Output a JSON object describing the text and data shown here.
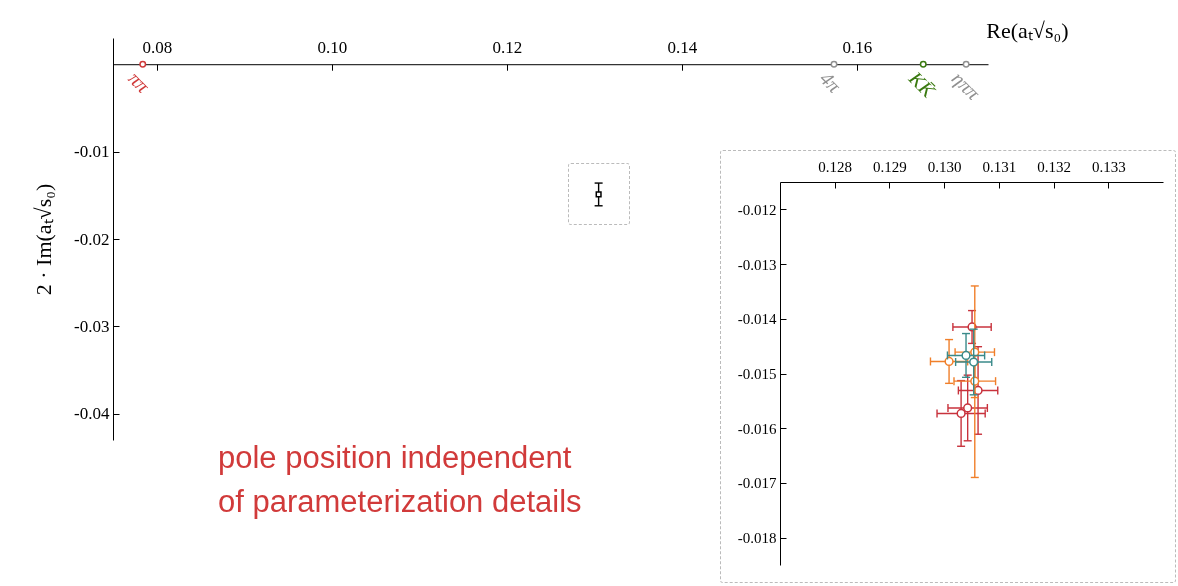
{
  "chart_data": [
    {
      "type": "scatter",
      "xlabel": "Re(aₜ√s₀)",
      "ylabel": "2 · Im(aₜ√s₀)",
      "xlim": [
        0.075,
        0.175
      ],
      "ylim": [
        -0.043,
        0.003
      ],
      "xticks": [
        0.08,
        {
          "value": 0.1,
          "label": "0.10"
        },
        0.12,
        0.14,
        0.16
      ],
      "yticks": [
        -0.01,
        -0.02,
        -0.03,
        -0.04
      ],
      "series": [
        {
          "marker": "circle",
          "colors": [
            "#d03a3a",
            "#909090",
            "#3a7a10",
            "#909090"
          ],
          "x": [
            0.0784,
            0.1574,
            0.1676,
            0.1725
          ],
          "values": [
            0,
            0,
            0,
            0
          ]
        },
        {
          "marker": "square",
          "color": "#000000",
          "x": [
            0.1305
          ],
          "values": [
            -0.0149
          ],
          "errors": [
            0.0013
          ]
        }
      ],
      "annotations": [
        {
          "text": "ππ",
          "x": 0.0784,
          "y": 0
        },
        {
          "text": "4π",
          "x": 0.1574,
          "y": 0
        },
        {
          "text": "KK̄",
          "x": 0.1676,
          "y": 0
        },
        {
          "text": "ηππ",
          "x": 0.1725,
          "y": 0
        },
        "pole position independent\nof parameterization details"
      ]
    },
    {
      "type": "scatter",
      "xlim": [
        0.127,
        0.134
      ],
      "ylim": [
        -0.0185,
        -0.0115
      ],
      "marker": "circle",
      "xticks": [
        0.128,
        0.129,
        {
          "value": 0.13,
          "label": "0.130"
        },
        0.131,
        0.132,
        0.133
      ],
      "yticks": [
        -0.012,
        -0.013,
        -0.014,
        -0.015,
        -0.016,
        -0.017,
        -0.018
      ],
      "series": [
        {
          "color": "#c8323c",
          "x": [
            0.13051,
            0.13062,
            0.13043,
            0.13031
          ],
          "values": [
            -0.01415,
            -0.01531,
            -0.01563,
            -0.01573
          ],
          "errors": [
            0.0003,
            0.0008,
            0.0006,
            0.0006
          ],
          "xerrors": [
            0.00035,
            0.00036,
            0.00036,
            0.00044
          ]
        },
        {
          "color": "#f07f2a",
          "x": [
            0.13056,
            0.13009,
            0.13056
          ],
          "values": [
            -0.01461,
            -0.01478,
            -0.01514
          ],
          "errors": [
            [
              -0.0169,
              -0.0134
            ],
            0.0004,
            0.0003
          ],
          "xerrors": [
            0.00036,
            0.00034,
            0.00038
          ]
        },
        {
          "color": "#3a8a8a",
          "x": [
            0.1304,
            0.13054
          ],
          "values": [
            -0.01467,
            -0.01479
          ],
          "errors": [
            0.0004,
            0.0006
          ],
          "xerrors": [
            0.00034,
            0.00033
          ]
        }
      ]
    }
  ]
}
